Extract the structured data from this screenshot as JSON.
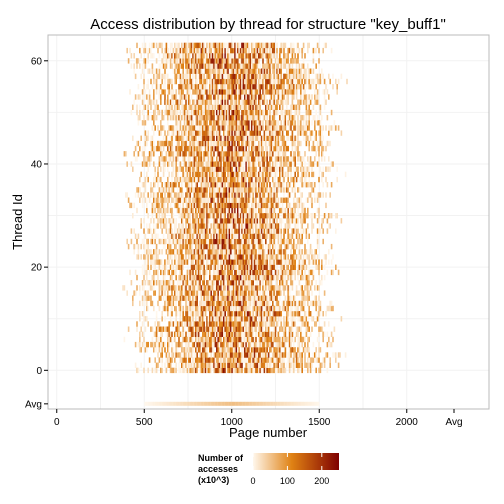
{
  "chart_data": {
    "type": "heatmap",
    "title": "Access distribution by thread for structure \"key_buff1\"",
    "xlabel": "Page number",
    "ylabel": "Thread Id",
    "x_tick_labels": [
      "0",
      "500",
      "1000",
      "1500",
      "2000",
      "Avg"
    ],
    "x_tick_values": [
      0,
      500,
      1000,
      1500,
      2000
    ],
    "x_avg_label": "Avg",
    "y_tick_labels": [
      "Avg",
      "0",
      "20",
      "40",
      "60"
    ],
    "y_tick_values": [
      0,
      20,
      40,
      60
    ],
    "y_avg_label": "Avg",
    "xlim": [
      -50,
      2470
    ],
    "ylim": [
      -7.5,
      65
    ],
    "threads": 64,
    "page_range": [
      0,
      2040
    ],
    "active_page_range": [
      350,
      1950
    ],
    "peak_page": 1000,
    "avg_row": {
      "label": "Avg",
      "page_range": [
        500,
        1500
      ],
      "peak_page": 1000
    },
    "grid": true,
    "legend": {
      "title": [
        "Number of",
        "accesses",
        "(x10^3)"
      ],
      "ticks": [
        "0",
        "100",
        "200"
      ],
      "tick_values": [
        0,
        100,
        200
      ],
      "range": [
        0,
        250
      ],
      "placement": "bottom"
    },
    "colors": {
      "low": "#fff7ec",
      "mid": "#e08214",
      "high": "#7f0000",
      "panel_border": "#bbbbbb",
      "grid": "#f2f2f2"
    }
  }
}
